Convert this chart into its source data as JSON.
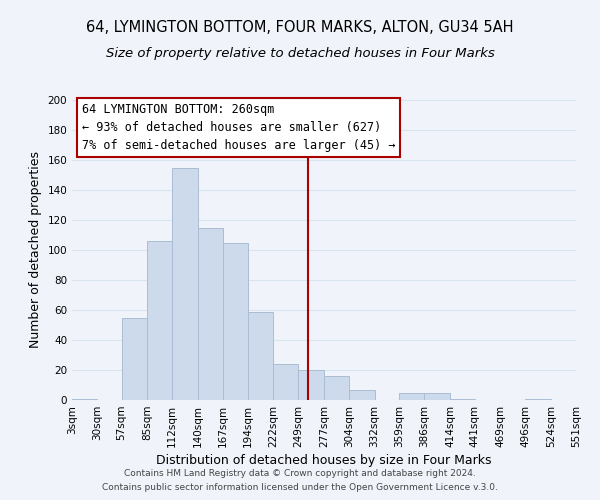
{
  "title1": "64, LYMINGTON BOTTOM, FOUR MARKS, ALTON, GU34 5AH",
  "title2": "Size of property relative to detached houses in Four Marks",
  "xlabel": "Distribution of detached houses by size in Four Marks",
  "ylabel": "Number of detached properties",
  "bin_edges": [
    3,
    30,
    57,
    85,
    112,
    140,
    167,
    194,
    222,
    249,
    277,
    304,
    332,
    359,
    386,
    414,
    441,
    469,
    496,
    524,
    551
  ],
  "bar_heights": [
    1,
    0,
    55,
    106,
    155,
    115,
    105,
    59,
    24,
    20,
    16,
    7,
    0,
    5,
    5,
    1,
    0,
    0,
    1,
    0
  ],
  "bar_color": "#ccdaeb",
  "bar_edgecolor": "#aabdd4",
  "vline_x": 260,
  "vline_color": "#aa0000",
  "annotation_title": "64 LYMINGTON BOTTOM: 260sqm",
  "annotation_line1": "← 93% of detached houses are smaller (627)",
  "annotation_line2": "7% of semi-detached houses are larger (45) →",
  "annotation_fontsize": 8.5,
  "box_edgecolor": "#aa0000",
  "ylim": [
    0,
    200
  ],
  "yticks": [
    0,
    20,
    40,
    60,
    80,
    100,
    120,
    140,
    160,
    180,
    200
  ],
  "tick_labels": [
    "3sqm",
    "30sqm",
    "57sqm",
    "85sqm",
    "112sqm",
    "140sqm",
    "167sqm",
    "194sqm",
    "222sqm",
    "249sqm",
    "277sqm",
    "304sqm",
    "332sqm",
    "359sqm",
    "386sqm",
    "414sqm",
    "441sqm",
    "469sqm",
    "496sqm",
    "524sqm",
    "551sqm"
  ],
  "footer1": "Contains HM Land Registry data © Crown copyright and database right 2024.",
  "footer2": "Contains public sector information licensed under the Open Government Licence v.3.0.",
  "title_fontsize": 10.5,
  "subtitle_fontsize": 9.5,
  "axis_label_fontsize": 9,
  "tick_fontsize": 7.5,
  "footer_fontsize": 6.5,
  "bg_color": "#f0f4fa",
  "grid_color": "#d8e4f0"
}
